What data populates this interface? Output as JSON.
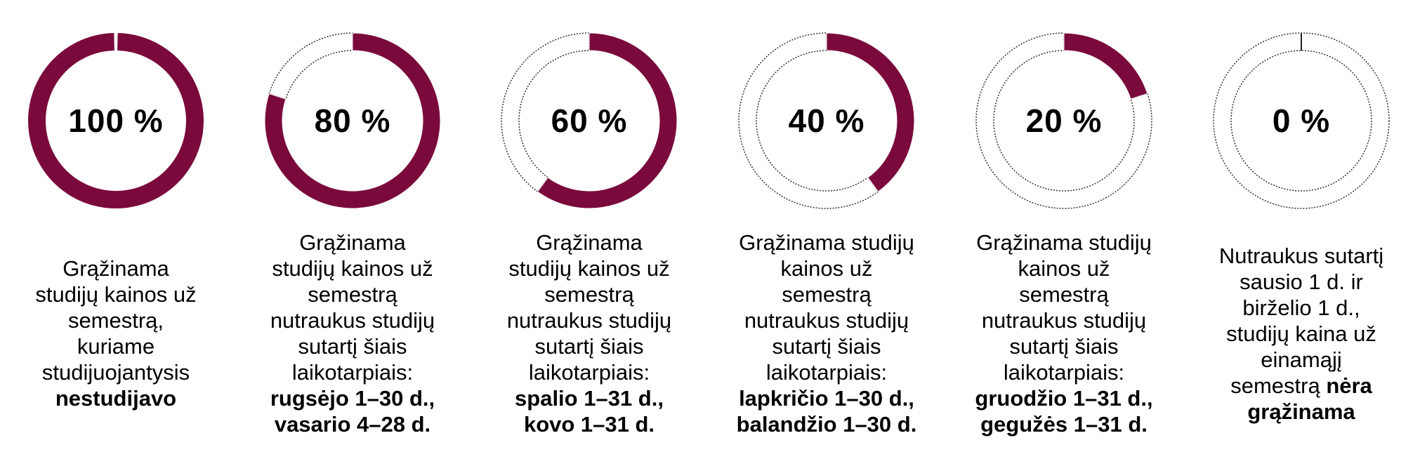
{
  "colors": {
    "filled": "#7a0a3c",
    "empty_stroke": "#333333"
  },
  "chart_data": {
    "type": "pie",
    "panels": [
      {
        "percent": 100,
        "label": "100 %",
        "caption": [
          {
            "text": "Grąžinama",
            "bold": false
          },
          {
            "text": "studijų kainos už",
            "bold": false
          },
          {
            "text": "semestrą,",
            "bold": false
          },
          {
            "text": "kuriame",
            "bold": false
          },
          {
            "text": "studijuojantysis",
            "bold": false
          },
          {
            "text": "nestudijavo",
            "bold": true
          }
        ]
      },
      {
        "percent": 80,
        "label": "80 %",
        "caption": [
          {
            "text": "Grąžinama",
            "bold": false
          },
          {
            "text": "studijų kainos už",
            "bold": false
          },
          {
            "text": "semestrą",
            "bold": false
          },
          {
            "text": "nutraukus studijų",
            "bold": false
          },
          {
            "text": "sutartį šiais",
            "bold": false
          },
          {
            "text": "laikotarpiais:",
            "bold": false
          },
          {
            "text": "rugsėjo 1–30 d.,",
            "bold": true
          },
          {
            "text": "vasario 4–28 d.",
            "bold": true
          }
        ]
      },
      {
        "percent": 60,
        "label": "60 %",
        "caption": [
          {
            "text": "Grąžinama",
            "bold": false
          },
          {
            "text": "studijų kainos už",
            "bold": false
          },
          {
            "text": "semestrą",
            "bold": false
          },
          {
            "text": "nutraukus studijų",
            "bold": false
          },
          {
            "text": "sutartį šiais",
            "bold": false
          },
          {
            "text": "laikotarpiais:",
            "bold": false
          },
          {
            "text": "spalio 1–31 d.,",
            "bold": true
          },
          {
            "text": "kovo 1–31 d.",
            "bold": true
          }
        ]
      },
      {
        "percent": 40,
        "label": "40 %",
        "caption": [
          {
            "text": "Grąžinama studijų",
            "bold": false
          },
          {
            "text": "kainos už",
            "bold": false
          },
          {
            "text": "semestrą",
            "bold": false
          },
          {
            "text": "nutraukus studijų",
            "bold": false
          },
          {
            "text": "sutartį šiais",
            "bold": false
          },
          {
            "text": "laikotarpiais:",
            "bold": false
          },
          {
            "text": "lapkričio 1–30 d.,",
            "bold": true
          },
          {
            "text": "balandžio 1–30 d.",
            "bold": true
          }
        ]
      },
      {
        "percent": 20,
        "label": "20 %",
        "caption": [
          {
            "text": "Grąžinama studijų",
            "bold": false
          },
          {
            "text": "kainos už",
            "bold": false
          },
          {
            "text": "semestrą",
            "bold": false
          },
          {
            "text": "nutraukus studijų",
            "bold": false
          },
          {
            "text": "sutartį šiais",
            "bold": false
          },
          {
            "text": "laikotarpiais:",
            "bold": false
          },
          {
            "text": "gruodžio 1–31 d.,",
            "bold": true
          },
          {
            "text": "gegužės 1–31 d.",
            "bold": true
          }
        ]
      },
      {
        "percent": 0,
        "label": "0 %",
        "caption": [
          {
            "text": "Nutraukus sutartį",
            "bold": false
          },
          {
            "text": "sausio 1 d. ir",
            "bold": false
          },
          {
            "text": "birželio 1 d.,",
            "bold": false
          },
          {
            "text": "studijų kaina už",
            "bold": false
          },
          {
            "text": "einamąjį",
            "bold": false
          },
          {
            "text": "semestrą ",
            "bold": false,
            "cont": true
          },
          {
            "text": "nėra",
            "bold": true
          },
          {
            "text": "grąžinama",
            "bold": true
          }
        ]
      }
    ]
  }
}
